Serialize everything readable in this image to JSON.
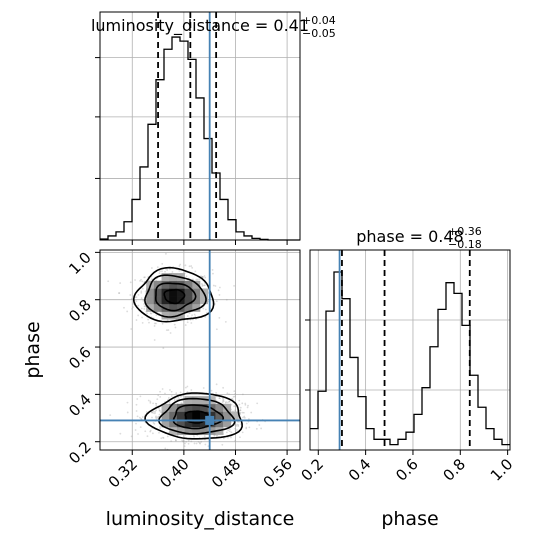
{
  "chart_data": [
    {
      "panel": "luminosity_distance-marginal",
      "type": "histogram",
      "title": {
        "prefix": "luminosity_distance = 0.41",
        "sup": "+0.04",
        "sub": "−0.05"
      },
      "x": {
        "lim": [
          0.27,
          0.58
        ],
        "ticks": [
          0.32,
          0.4,
          0.48,
          0.56
        ]
      },
      "grid": true,
      "bins": {
        "start": 0.27,
        "width": 0.0124,
        "counts": [
          0.005,
          0.02,
          0.04,
          0.09,
          0.2,
          0.36,
          0.57,
          0.79,
          0.94,
          1.0,
          0.98,
          0.89,
          0.7,
          0.5,
          0.33,
          0.2,
          0.1,
          0.04,
          0.02,
          0.008,
          0.003,
          0.0,
          0.0,
          0.0,
          0.0
        ]
      },
      "quantiles": [
        0.36,
        0.41,
        0.45
      ],
      "truth": 0.44,
      "truth_color": "#4682b4"
    },
    {
      "panel": "phase-marginal",
      "type": "histogram",
      "title": {
        "prefix": "phase = 0.48",
        "sup": "+0.36",
        "sub": "−0.18"
      },
      "x": {
        "lim": [
          0.165,
          1.01
        ],
        "ticks": [
          0.2,
          0.4,
          0.6,
          0.8,
          1.0
        ]
      },
      "grid": true,
      "bins": {
        "start": 0.165,
        "width": 0.0338,
        "counts": [
          0.12,
          0.33,
          0.78,
          1.0,
          0.85,
          0.52,
          0.3,
          0.12,
          0.06,
          0.06,
          0.03,
          0.06,
          0.1,
          0.2,
          0.35,
          0.58,
          0.79,
          0.94,
          0.88,
          0.7,
          0.42,
          0.24,
          0.12,
          0.06,
          0.03
        ]
      },
      "quantiles": [
        0.3,
        0.48,
        0.84
      ],
      "truth": 0.29,
      "truth_color": "#4682b4"
    },
    {
      "panel": "joint-2d",
      "type": "scatter",
      "x": {
        "label": "luminosity_distance",
        "lim": [
          0.27,
          0.58
        ],
        "ticks": [
          0.32,
          0.4,
          0.48,
          0.56
        ]
      },
      "y": {
        "label": "phase",
        "lim": [
          0.165,
          1.01
        ],
        "ticks": [
          0.2,
          0.4,
          0.6,
          0.8,
          1.0
        ]
      },
      "grid": true,
      "modes": [
        {
          "center": [
            0.385,
            0.815
          ],
          "sd": [
            0.028,
            0.052
          ],
          "weight": 0.42
        },
        {
          "center": [
            0.42,
            0.305
          ],
          "sd": [
            0.034,
            0.045
          ],
          "weight": 0.58
        }
      ],
      "truth": {
        "x": 0.44,
        "y": 0.29
      },
      "truth_color": "#4682b4"
    }
  ]
}
